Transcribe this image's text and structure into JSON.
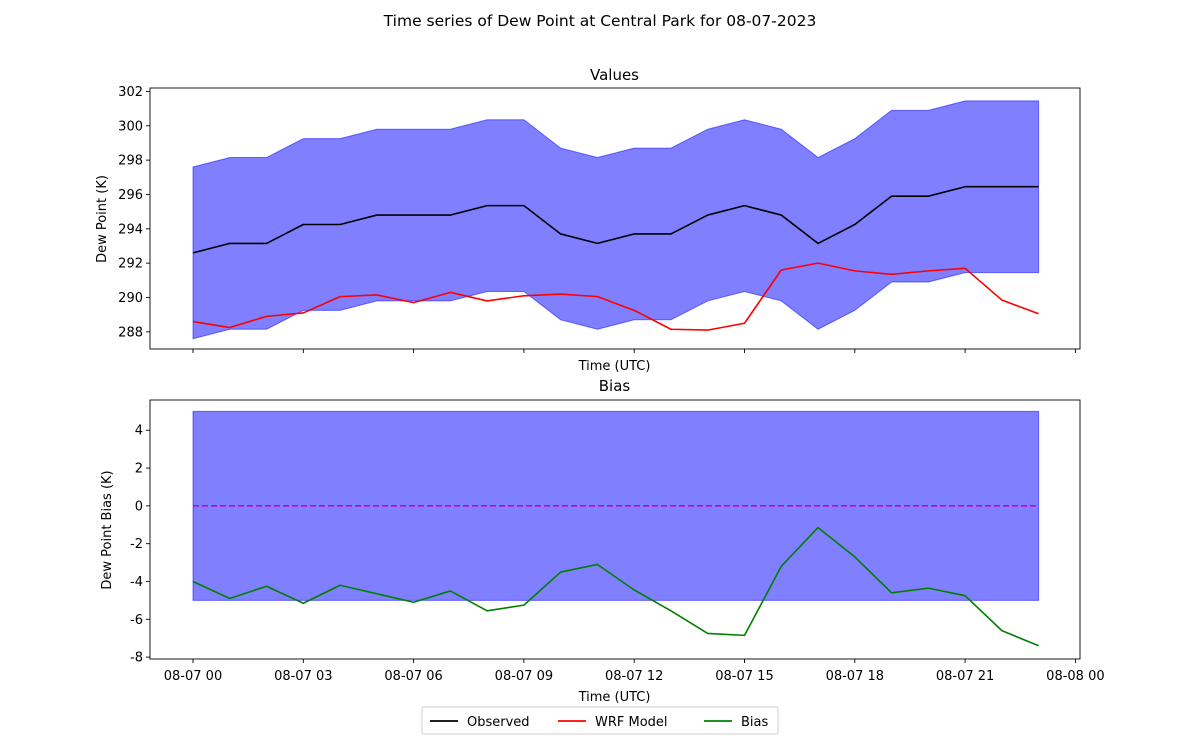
{
  "figure": {
    "suptitle": "Time series of Dew Point at Central Park for 08-07-2023"
  },
  "chart_data": [
    {
      "type": "line",
      "title": "Values",
      "xlabel": "Time (UTC)",
      "ylabel": "Dew Point (K)",
      "ylim": [
        287,
        302.2
      ],
      "yticks": [
        288,
        290,
        292,
        294,
        296,
        298,
        300,
        302
      ],
      "x_hours": [
        0,
        1,
        2,
        3,
        4,
        5,
        6,
        7,
        8,
        9,
        10,
        11,
        12,
        13,
        14,
        15,
        16,
        17,
        18,
        19,
        20,
        21,
        22,
        23
      ],
      "series": [
        {
          "name": "Observed",
          "color": "#000000",
          "values": [
            292.6,
            293.15,
            293.15,
            294.25,
            294.25,
            294.8,
            294.8,
            294.8,
            295.35,
            295.35,
            293.7,
            293.15,
            293.7,
            293.7,
            294.8,
            295.35,
            294.8,
            293.15,
            294.25,
            295.9,
            295.9,
            296.45,
            296.45,
            296.45
          ]
        },
        {
          "name": "WRF Model",
          "color": "#ff0000",
          "values": [
            288.6,
            288.25,
            288.9,
            289.1,
            290.05,
            290.15,
            289.7,
            290.3,
            289.8,
            290.1,
            290.2,
            290.05,
            289.25,
            288.15,
            288.1,
            288.5,
            291.6,
            292.0,
            291.55,
            291.35,
            291.55,
            291.7,
            289.85,
            289.05
          ]
        }
      ],
      "band": {
        "color": "#0000ff",
        "opacity": 0.5,
        "lower": [
          287.6,
          288.15,
          288.15,
          289.25,
          289.25,
          289.8,
          289.8,
          289.8,
          290.35,
          290.35,
          288.7,
          288.15,
          288.7,
          288.7,
          289.8,
          290.35,
          289.8,
          288.15,
          289.25,
          290.9,
          290.9,
          291.45,
          291.45,
          291.45
        ],
        "upper": [
          297.6,
          298.15,
          298.15,
          299.25,
          299.25,
          299.8,
          299.8,
          299.8,
          300.35,
          300.35,
          298.7,
          298.15,
          298.7,
          298.7,
          299.8,
          300.35,
          299.8,
          298.15,
          299.25,
          300.9,
          300.9,
          301.45,
          301.45,
          301.45
        ]
      }
    },
    {
      "type": "line",
      "title": "Bias",
      "xlabel": "Time (UTC)",
      "ylabel": "Dew Point Bias (K)",
      "ylim": [
        -8.1,
        5.6
      ],
      "yticks": [
        -8,
        -6,
        -4,
        -2,
        0,
        2,
        4
      ],
      "x_hours": [
        0,
        1,
        2,
        3,
        4,
        5,
        6,
        7,
        8,
        9,
        10,
        11,
        12,
        13,
        14,
        15,
        16,
        17,
        18,
        19,
        20,
        21,
        22,
        23
      ],
      "xticks": [
        "08-07 00",
        "08-07 03",
        "08-07 06",
        "08-07 09",
        "08-07 12",
        "08-07 15",
        "08-07 18",
        "08-07 21",
        "08-08 00"
      ],
      "series": [
        {
          "name": "Bias",
          "color": "#008000",
          "values": [
            -4.0,
            -4.9,
            -4.25,
            -5.15,
            -4.2,
            -4.65,
            -5.1,
            -4.5,
            -5.55,
            -5.25,
            -3.5,
            -3.1,
            -4.45,
            -5.55,
            -6.75,
            -6.85,
            -3.2,
            -1.15,
            -2.7,
            -4.6,
            -4.35,
            -4.75,
            -6.6,
            -7.4
          ]
        }
      ],
      "reference_line": {
        "value": 0,
        "color": "#bf00bf",
        "style": "dashed"
      },
      "band": {
        "color": "#0000ff",
        "opacity": 0.5,
        "lower": -5,
        "upper": 5
      }
    }
  ],
  "legend": {
    "placement": "bottom-center",
    "entries": [
      {
        "label": "Observed",
        "color": "#000000"
      },
      {
        "label": "WRF Model",
        "color": "#ff0000"
      },
      {
        "label": "Bias",
        "color": "#008000"
      }
    ]
  }
}
